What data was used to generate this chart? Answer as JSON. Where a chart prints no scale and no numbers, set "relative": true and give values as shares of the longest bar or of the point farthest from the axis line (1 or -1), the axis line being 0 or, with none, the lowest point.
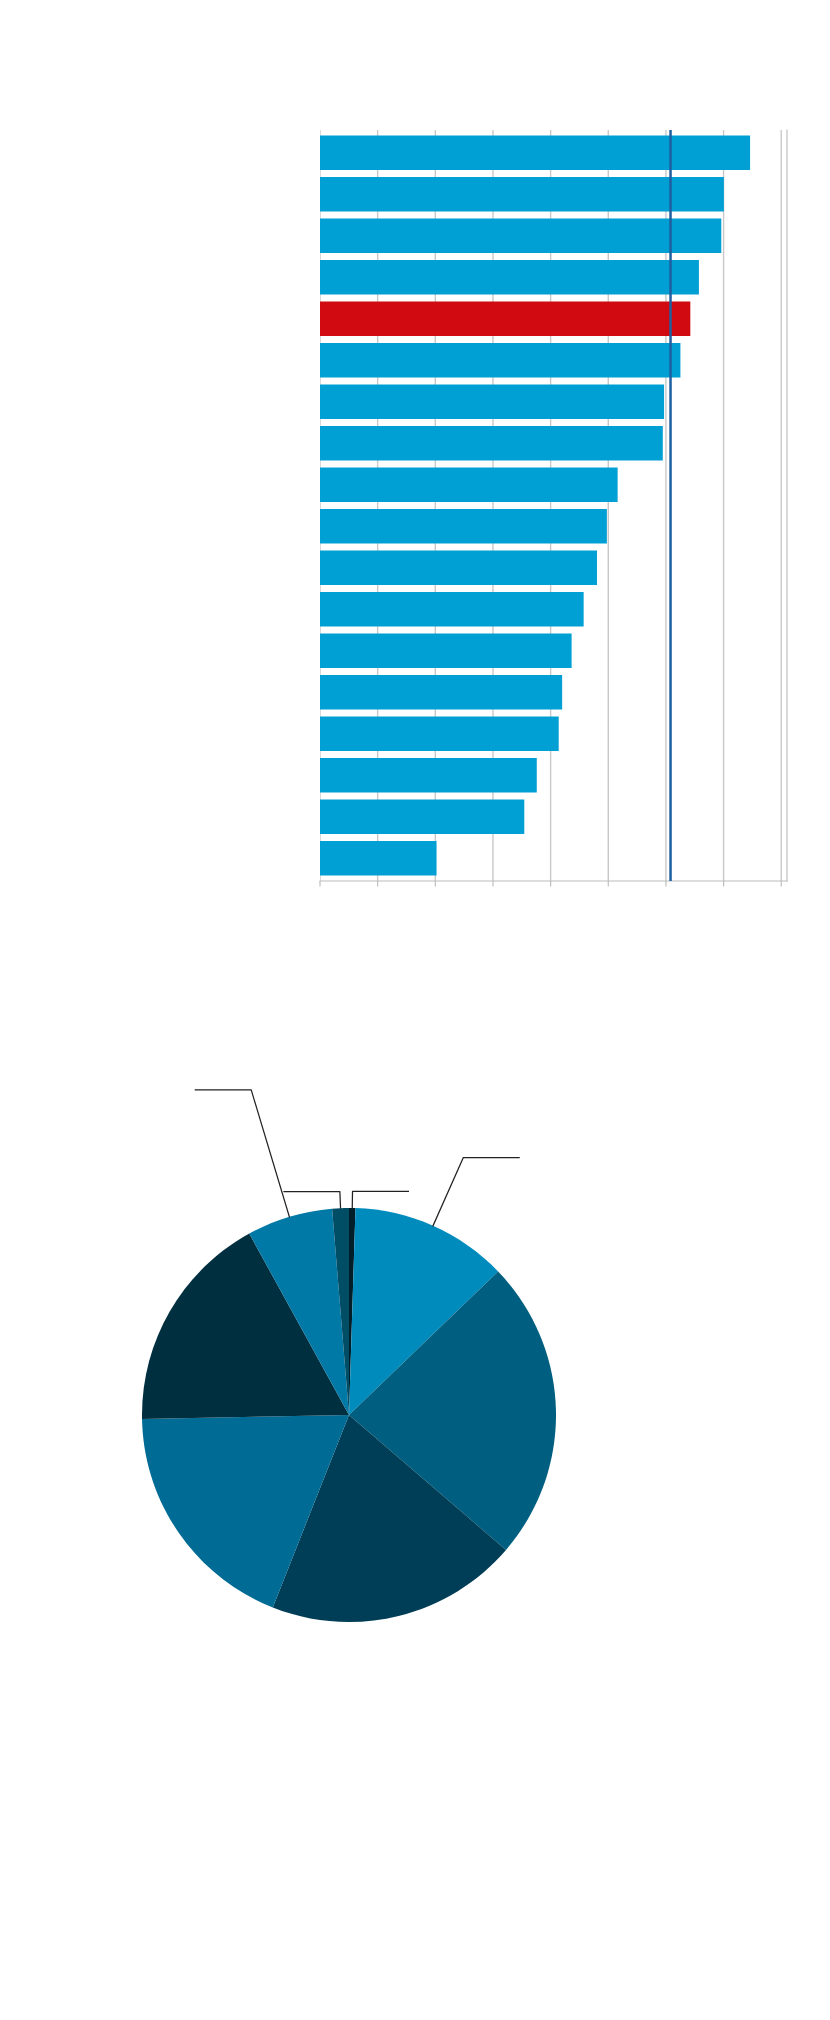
{
  "chart_data": [
    {
      "type": "bar",
      "orientation": "horizontal",
      "relative": true,
      "categories": [
        null,
        null,
        null,
        null,
        null,
        null,
        null,
        null,
        null,
        null,
        null,
        null,
        null,
        null,
        null,
        null,
        null,
        null
      ],
      "values": [
        1,
        0.939,
        0.933,
        0.881,
        0.861,
        0.838,
        0.8,
        0.797,
        0.692,
        0.667,
        0.644,
        0.613,
        0.585,
        0.563,
        0.555,
        0.504,
        0.475,
        0.271
      ],
      "colors": [
        "#009fd4",
        "#009fd4",
        "#009fd4",
        "#009fd4",
        "#d00a10",
        "#009fd4",
        "#009fd4",
        "#009fd4",
        "#009fd4",
        "#009fd4",
        "#009fd4",
        "#009fd4",
        "#009fd4",
        "#009fd4",
        "#009fd4",
        "#009fd4",
        "#009fd4",
        "#009fd4"
      ],
      "ref_lines": [
        {
          "axis": "x",
          "value": 0.815,
          "color": "#1f5fa0"
        }
      ],
      "grid": "x"
    },
    {
      "type": "pie",
      "categories": [
        null,
        null,
        null,
        null,
        null,
        null,
        null,
        null
      ],
      "values": [
        0.5,
        12.3,
        23.5,
        19.7,
        18.7,
        17.3,
        6.7,
        1.3
      ],
      "colors": [
        "#001f2b",
        "#008bbd",
        "#005f80",
        "#003d56",
        "#006b94",
        "#002f40",
        "#0079a6",
        "#004d66"
      ]
    }
  ]
}
